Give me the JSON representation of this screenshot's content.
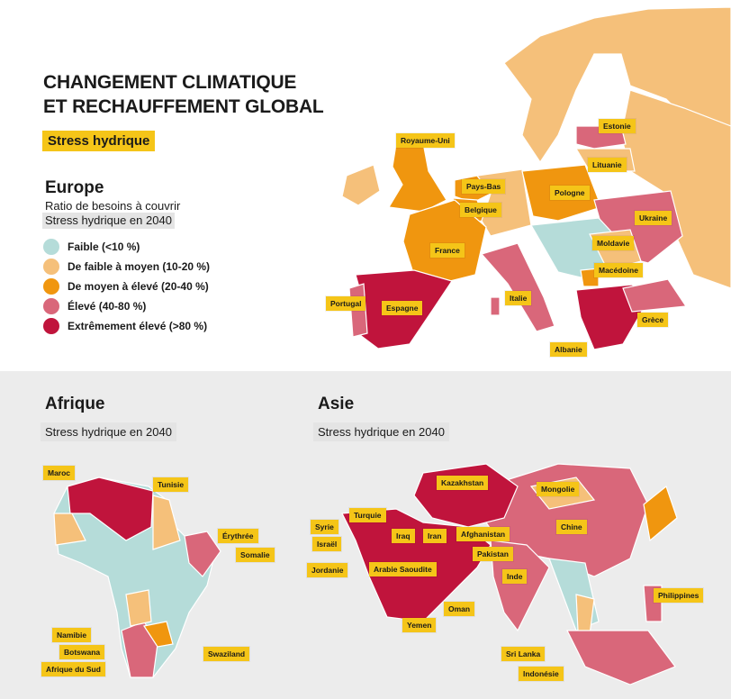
{
  "header": {
    "title_line1": "CHANGEMENT CLIMATIQUE",
    "title_line2": "ET RECHAUFFEMENT GLOBAL",
    "tag": "Stress hydrique"
  },
  "europe": {
    "title": "Europe",
    "subtitle_line1": "Ratio de besoins à couvrir",
    "subtitle_line2": "Stress hydrique en 2040",
    "legend": [
      {
        "label": "Faible (<10 %)",
        "color": "#b5dcd9"
      },
      {
        "label": "De faible à moyen (10-20 %)",
        "color": "#f5c07a"
      },
      {
        "label": "De moyen à élevé (20-40 %)",
        "color": "#f0960f"
      },
      {
        "label": "Élevé (40-80 %)",
        "color": "#d9677a"
      },
      {
        "label": "Extrêmement élevé (>80 %)",
        "color": "#c0143c"
      }
    ],
    "countries": [
      "Royaume-Uni",
      "Estonie",
      "Lituanie",
      "Pays-Bas",
      "Pologne",
      "Belgique",
      "Ukraine",
      "France",
      "Moldavie",
      "Macédoine",
      "Portugal",
      "Espagne",
      "Italie",
      "Grèce",
      "Albanie"
    ]
  },
  "afrique": {
    "title": "Afrique",
    "subtitle": "Stress hydrique en 2040",
    "countries": [
      "Maroc",
      "Tunisie",
      "Érythrée",
      "Somalie",
      "Namibie",
      "Botswana",
      "Swaziland",
      "Afrique du Sud"
    ]
  },
  "asie": {
    "title": "Asie",
    "subtitle": "Stress hydrique en 2040",
    "countries": [
      "Kazakhstan",
      "Mongolie",
      "Turquie",
      "Syrie",
      "Chine",
      "Iraq",
      "Iran",
      "Afghanistan",
      "Israël",
      "Pakistan",
      "Jordanie",
      "Arabie Saoudite",
      "Inde",
      "Philippines",
      "Oman",
      "Yemen",
      "Sri Lanka",
      "Indonésie"
    ]
  }
}
